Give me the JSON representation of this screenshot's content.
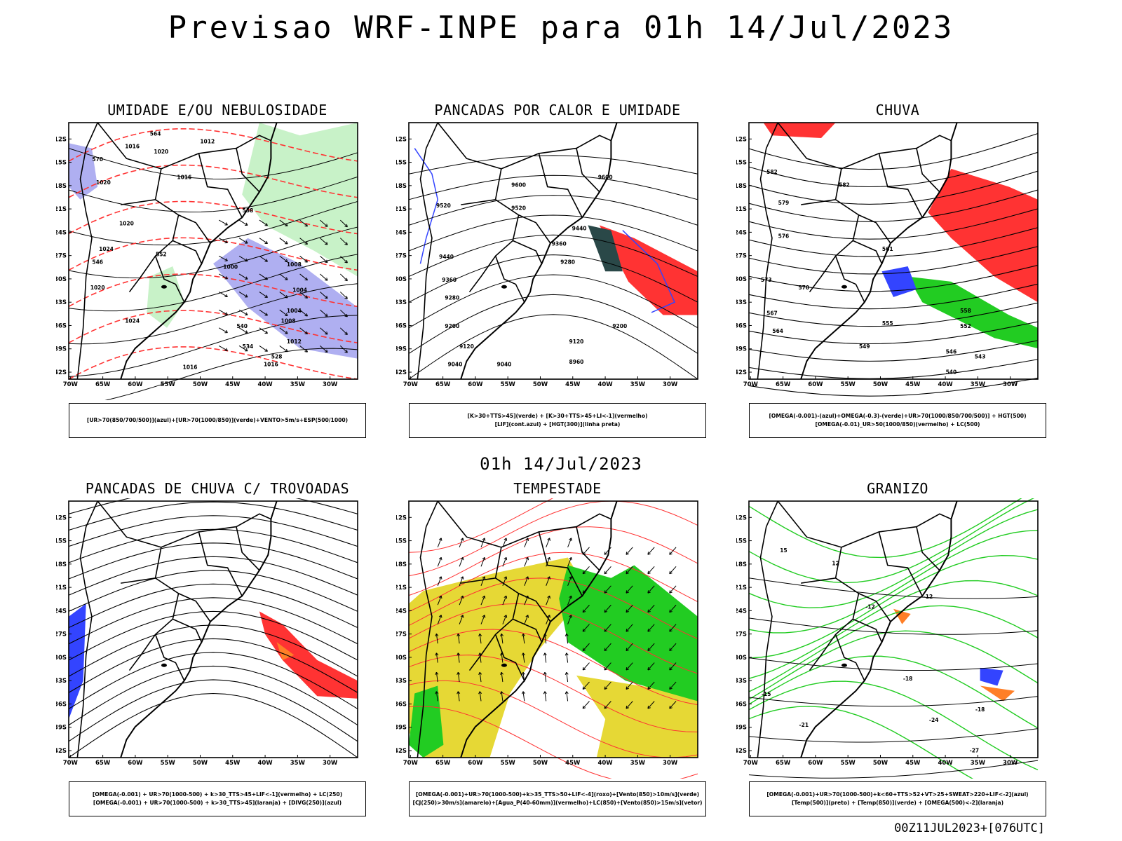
{
  "header": {
    "title": "Previsao WRF-INPE  para 01h 14/Jul/2023"
  },
  "mid_title": "01h 14/Jul/2023",
  "footer": "00Z11JUL2023+[076UTC]",
  "axes": {
    "lat_labels": [
      "12S",
      "15S",
      "18S",
      "21S",
      "24S",
      "27S",
      "30S",
      "33S",
      "36S",
      "39S",
      "42S"
    ],
    "lon_labels": [
      "70W",
      "65W",
      "60W",
      "55W",
      "50W",
      "45W",
      "40W",
      "35W",
      "30W"
    ]
  },
  "colors": {
    "red": "#ff3333",
    "blue": "#3344ff",
    "green": "#22cc22",
    "lavender": "#9b9bee",
    "yellow": "#e6d835",
    "orange": "#ff7f27",
    "darkteal": "#2a4848"
  },
  "panels": [
    {
      "title": "UMIDADE E/OU NEBULOSIDADE",
      "legend": [
        "[UR>70(850/700/500)](azul)+[UR>70(1000/850)](verde)+VENTO>5m/s+ESP(500/1000)"
      ],
      "contour_labels": [
        "1016",
        "1012",
        "1016",
        "1020",
        "1024",
        "1020",
        "1024",
        "1020",
        "1016",
        "1008",
        "1004",
        "1000",
        "1004",
        "1008",
        "1012",
        "1016",
        "1020",
        "570",
        "564",
        "558",
        "552",
        "546",
        "540",
        "534",
        "528"
      ]
    },
    {
      "title": "PANCADAS POR CALOR E UMIDADE",
      "legend": [
        "[K>30+TTS>45](verde) + [K>30+TTS>45+LI<-1](vermelho)",
        "[LIF](cont.azul) + [HGT(300)](linha preta)"
      ],
      "contour_labels": [
        "9600",
        "9600",
        "9520",
        "9520",
        "9440",
        "9440",
        "9360",
        "9360",
        "9280",
        "9280",
        "9200",
        "9200",
        "9120",
        "9120",
        "9040",
        "9040",
        "8960"
      ]
    },
    {
      "title": "CHUVA",
      "legend": [
        "[OMEGA(-0.001)-(azul)+OMEGA(-0.3)-(verde)+UR>70(1000/850/700/500)] + HGT(500)",
        "[OMEGA(-0.01)_UR>50(1000/850)(vermelho) + LC(500)"
      ],
      "contour_labels": [
        "582",
        "582",
        "579",
        "576",
        "573",
        "570",
        "567",
        "564",
        "561",
        "558",
        "555",
        "552",
        "549",
        "546",
        "543",
        "540"
      ]
    },
    {
      "title": "PANCADAS DE CHUVA C/ TROVOADAS",
      "legend": [
        "[OMEGA(-0.001) + UR>70(1000-500) + k>30_TTS>45+LIF<-1](vermelho) + LC(250)",
        "[OMEGA(-0.001) + UR>70(1000-500) + k>30_TTS>45](laranja) + [DIVG(250)](azul)"
      ],
      "contour_labels": []
    },
    {
      "title": "TEMPESTADE",
      "legend": [
        "[OMEGA(-0.001)+UR>70(1000-500)+k>35_TTS>50+LIF<-4](roxo)+[Vento(850)>10m/s](verde)",
        "[CJ(250)>30m/s](amarelo)+[Agua_P(40-60mm)](vermelho)+LC(850)+[Vento(850)>15m/s](vetor)"
      ],
      "contour_labels": []
    },
    {
      "title": "GRANIZO",
      "legend": [
        "[OMEGA(-0.001)+UR>70(1000-500)+k<60+TTS>52+VT>25+SWEAT>220+LIF<-2](azul)",
        "[Temp(500)](preto) + [Temp(850)](verde) + [OMEGA(500)<-2](laranja)"
      ],
      "contour_labels": [
        "-12",
        "-12",
        "-15",
        "-18",
        "-21",
        "-24",
        "-27",
        "-18",
        "15",
        "12"
      ]
    }
  ]
}
